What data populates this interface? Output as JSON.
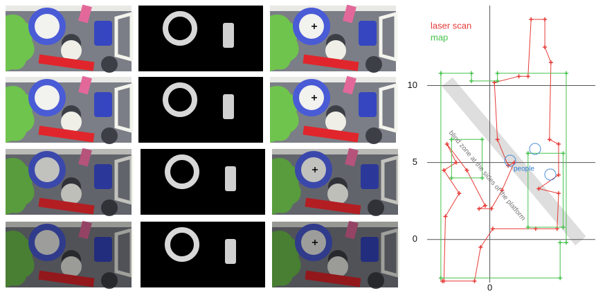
{
  "chart_data": {
    "type": "line",
    "series": [
      {
        "name": "laser scan",
        "color": "#e53935",
        "x": [
          -3.1,
          -1.0,
          -0.6,
          0.2,
          3.0,
          4.4,
          4.5,
          3.2,
          4.5,
          4.5,
          3.9,
          4.0,
          3.6,
          3.6,
          2.7,
          2.5,
          1.9,
          0.3,
          0.5,
          1.2,
          1.6,
          0.8,
          0.1,
          -0.7,
          -0.3,
          -1.5,
          -2.8,
          -2.2,
          -3.0,
          -2.0,
          -2.9,
          -3.0
        ],
        "values": [
          -2.7,
          -2.7,
          -0.5,
          0.7,
          0.7,
          0.7,
          3.0,
          3.3,
          4.2,
          6.2,
          6.5,
          11.5,
          12.5,
          14.3,
          14.3,
          10.6,
          10.6,
          10.2,
          6.5,
          4.8,
          5.0,
          3.2,
          2.0,
          2.0,
          2.2,
          4.5,
          6.2,
          5.0,
          4.5,
          3.0,
          1.5,
          -2.7
        ]
      },
      {
        "name": "map",
        "color": "#43c24a",
        "x": [
          -3.2,
          -1.2,
          -1.2,
          0.5,
          0.5,
          5.0,
          5.0,
          4.6,
          4.6,
          -3.2,
          -3.2,
          null,
          -2.5,
          -0.5,
          -0.5,
          -2.5,
          -2.5,
          null,
          2.5,
          4.8,
          4.8,
          2.5,
          2.5
        ],
        "values": [
          10.8,
          10.8,
          10.3,
          10.3,
          10.8,
          10.8,
          -0.2,
          -0.2,
          -2.5,
          -2.5,
          10.8,
          null,
          6.5,
          6.5,
          4.0,
          4.0,
          6.5,
          null,
          5.6,
          5.6,
          0.8,
          0.8,
          5.6
        ]
      }
    ],
    "xlim": [
      -4.1,
      6.9
    ],
    "ylim": [
      -2.8,
      15.2
    ],
    "xticks": [
      0
    ],
    "yticks": [
      0,
      5,
      10
    ],
    "grid": true,
    "annotations": [
      "blind zone at the sides of the platform",
      "people"
    ]
  }
}
